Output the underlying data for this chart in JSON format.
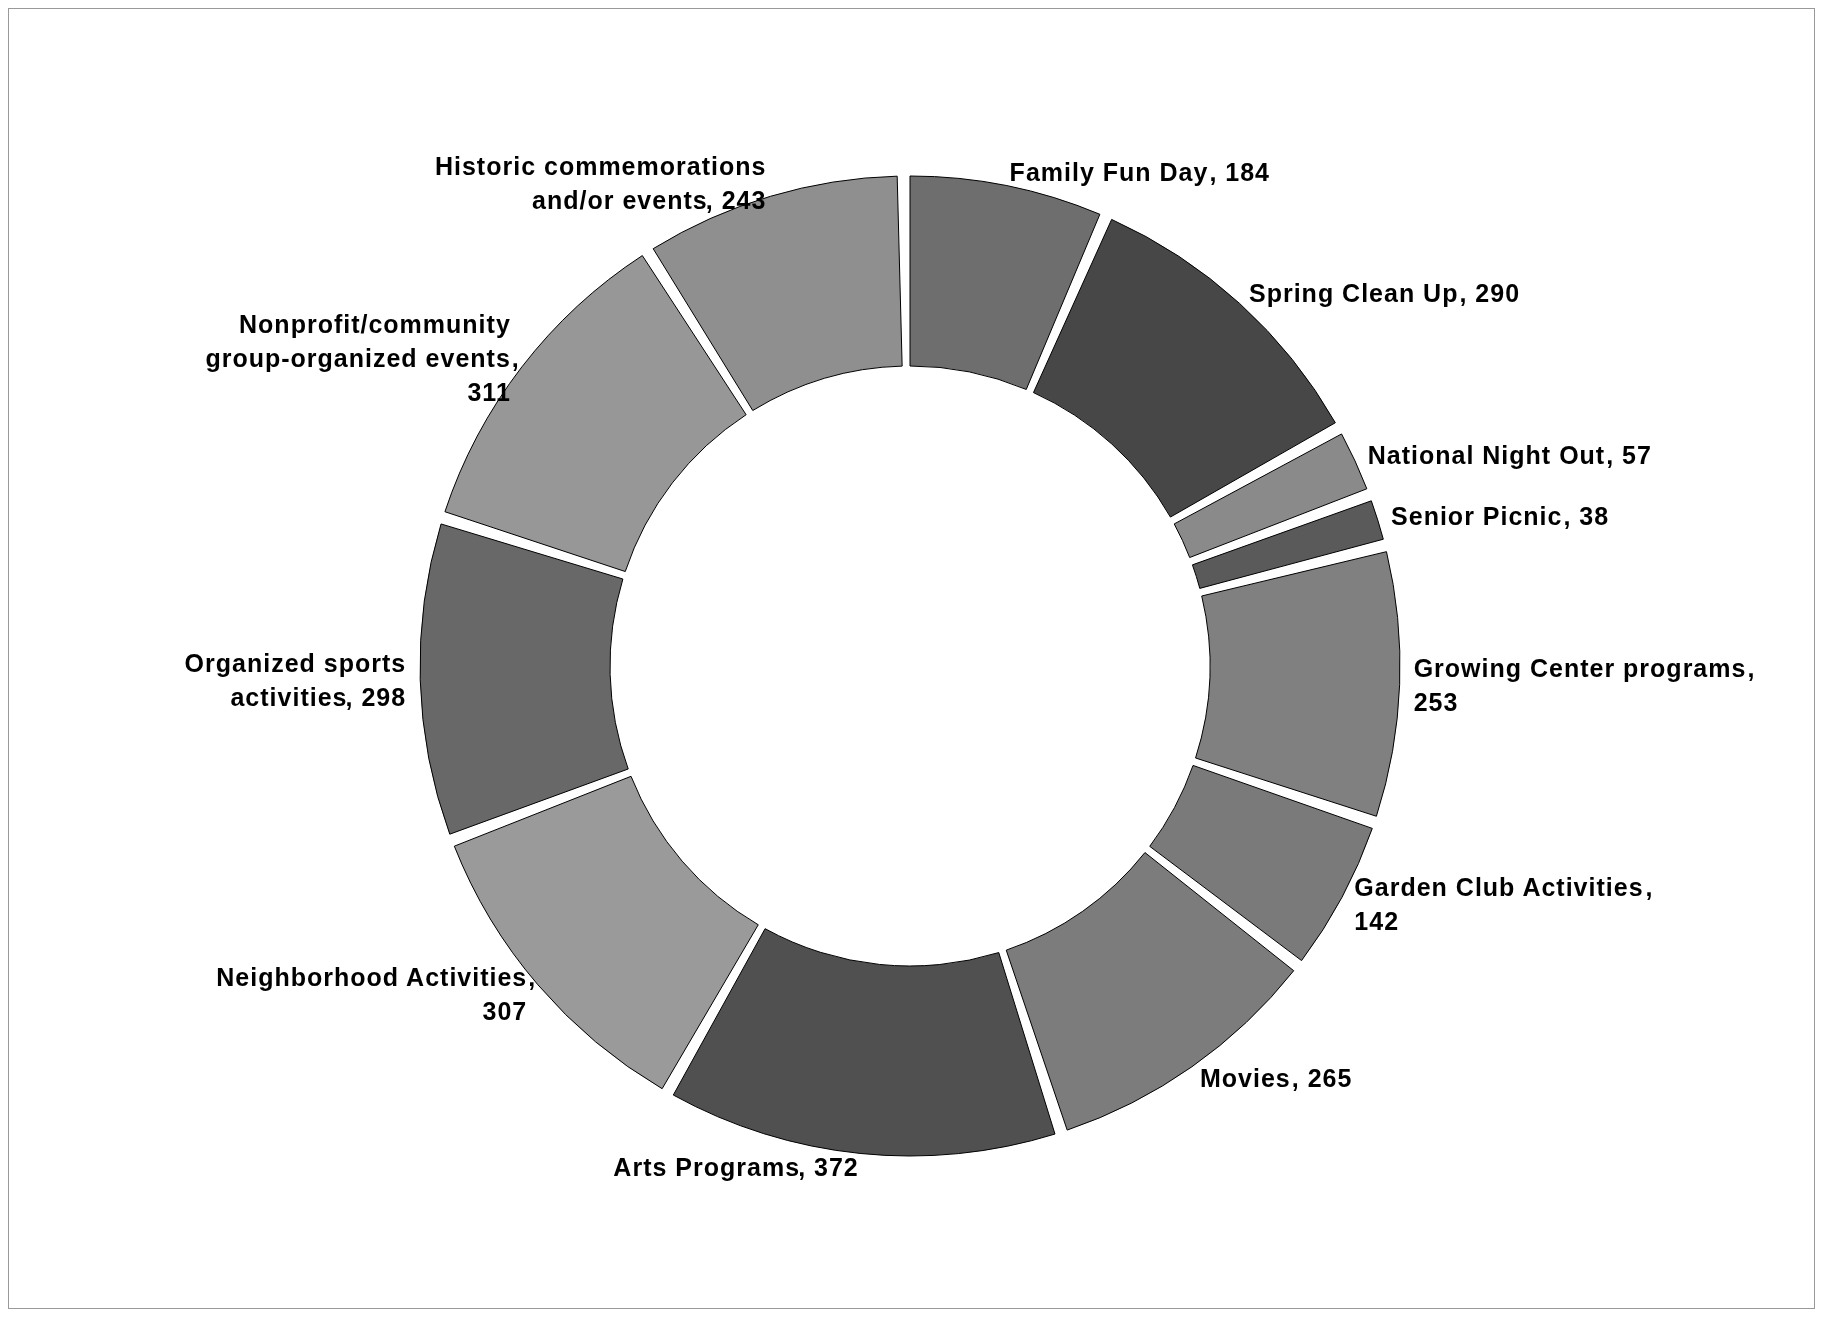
{
  "chart_data": {
    "type": "donut",
    "categories": [
      "Family Fun Day",
      "Spring Clean Up",
      "National Night Out",
      "Senior Picnic",
      "Growing Center programs",
      "Garden Club Activities",
      "Movies",
      "Arts Programs",
      "Neighborhood Activities",
      "Organized sports activities",
      "Nonprofit/community group-organized events",
      "Historic commemorations and/or events"
    ],
    "values": [
      184,
      290,
      57,
      38,
      253,
      142,
      265,
      372,
      307,
      298,
      311,
      243
    ],
    "colors": [
      "#6e6e6e",
      "#474747",
      "#8a8a8a",
      "#5a5a5a",
      "#808080",
      "#7a7a7a",
      "#7c7c7c",
      "#505050",
      "#9a9a9a",
      "#686868",
      "#979797",
      "#8f8f8f"
    ],
    "value_labels": [
      ", 184",
      ", 290",
      ", 57",
      ", 38",
      ", 253",
      ", 142",
      ", 265",
      ", 372",
      ", 307",
      ", 298",
      ", 311",
      ", 243"
    ],
    "legend": false
  }
}
